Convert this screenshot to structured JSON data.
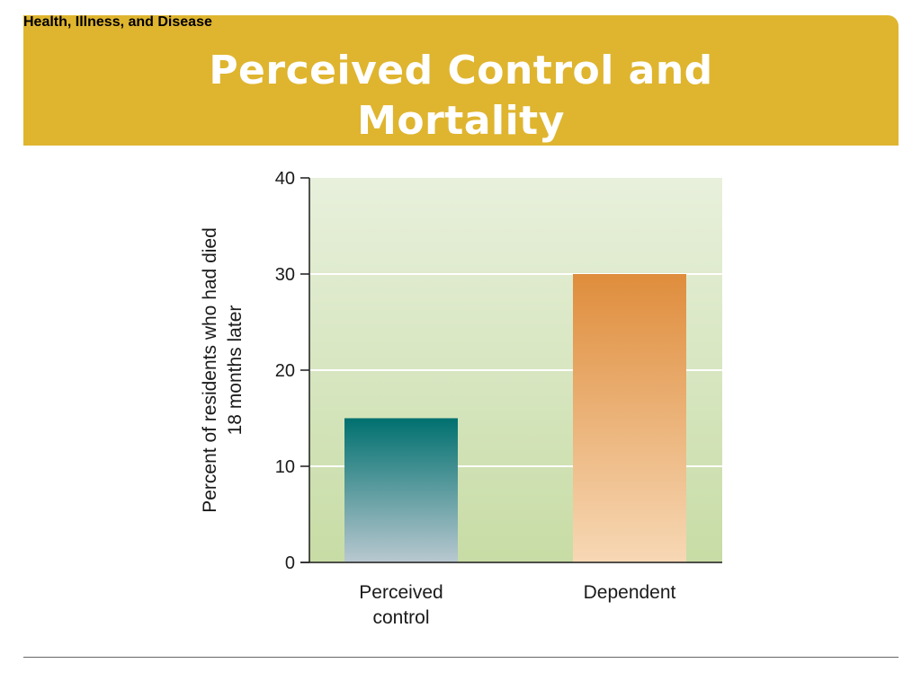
{
  "slide": {
    "section": "Health, Illness, and Disease",
    "title_line1": "Perceived Control and",
    "title_line2": "Mortality"
  },
  "colors": {
    "title_band": "#dfb52f",
    "plot_bg_top": "#e8f0dc",
    "plot_bg_bottom": "#c7dca5",
    "bar_control_top": "#00706f",
    "bar_control_bottom": "#b9c8d0",
    "bar_dependent_top": "#df8d3c",
    "bar_dependent_bottom": "#f7d8b5"
  },
  "chart_data": {
    "type": "bar",
    "categories": [
      "Perceived\ncontrol",
      "Dependent"
    ],
    "values": [
      15,
      30
    ],
    "ylabel_lines": [
      "Percent of residents who had died",
      "18 months later"
    ],
    "xlabel": "",
    "ylim": [
      0,
      40
    ],
    "yticks": [
      0,
      10,
      20,
      30,
      40
    ],
    "grid": true,
    "legend": "none"
  }
}
